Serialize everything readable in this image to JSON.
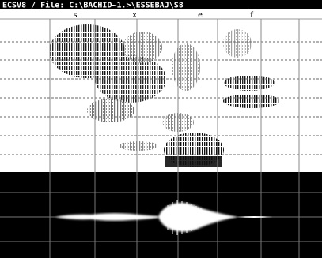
{
  "window": {
    "title": "ECSV8 / File: C:\\BACHID~1.>\\ESSEBAJ\\S8"
  },
  "segments": [
    {
      "label": "s"
    },
    {
      "label": "x"
    },
    {
      "label": "e"
    },
    {
      "label": "f"
    }
  ]
}
